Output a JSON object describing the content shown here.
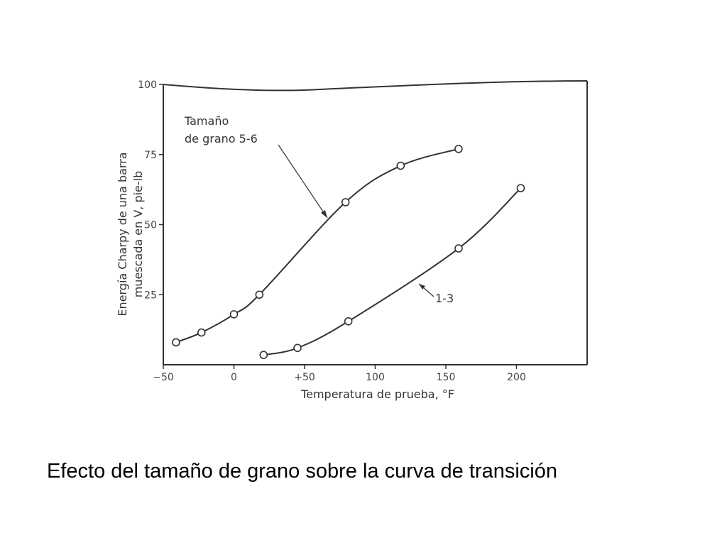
{
  "caption": "Efecto del tamaño de grano sobre la curva de transición",
  "chart_data": {
    "type": "line",
    "title": "",
    "xlabel": "Temperatura de prueba, °F",
    "ylabel_lines": [
      "Energía Charpy de una barra",
      "muescada en V, pie-lb"
    ],
    "xlim": [
      -50,
      250
    ],
    "ylim": [
      0,
      100
    ],
    "x_ticks": [
      -50,
      0,
      50,
      100,
      150,
      200
    ],
    "x_tick_labels": [
      "−50",
      "0",
      "+50",
      "100",
      "150",
      "200"
    ],
    "y_ticks": [
      25,
      50,
      75,
      100
    ],
    "y_tick_labels": [
      "25",
      "50",
      "75",
      "100"
    ],
    "grid": false,
    "legend": "none",
    "series": [
      {
        "label_lines": [
          "Tamaño",
          "de grano 5-6"
        ],
        "x": [
          -41,
          -23,
          0,
          18,
          79,
          118,
          159
        ],
        "y": [
          8,
          11.5,
          18,
          25,
          58,
          71,
          77
        ]
      },
      {
        "label_lines": [
          "1-3"
        ],
        "x": [
          21,
          45,
          81,
          159,
          203
        ],
        "y": [
          3.5,
          6,
          15.5,
          41.5,
          63
        ]
      }
    ],
    "colors": {
      "line": "#333333",
      "marker_fill": "#ffffff",
      "text": "#333333"
    }
  }
}
